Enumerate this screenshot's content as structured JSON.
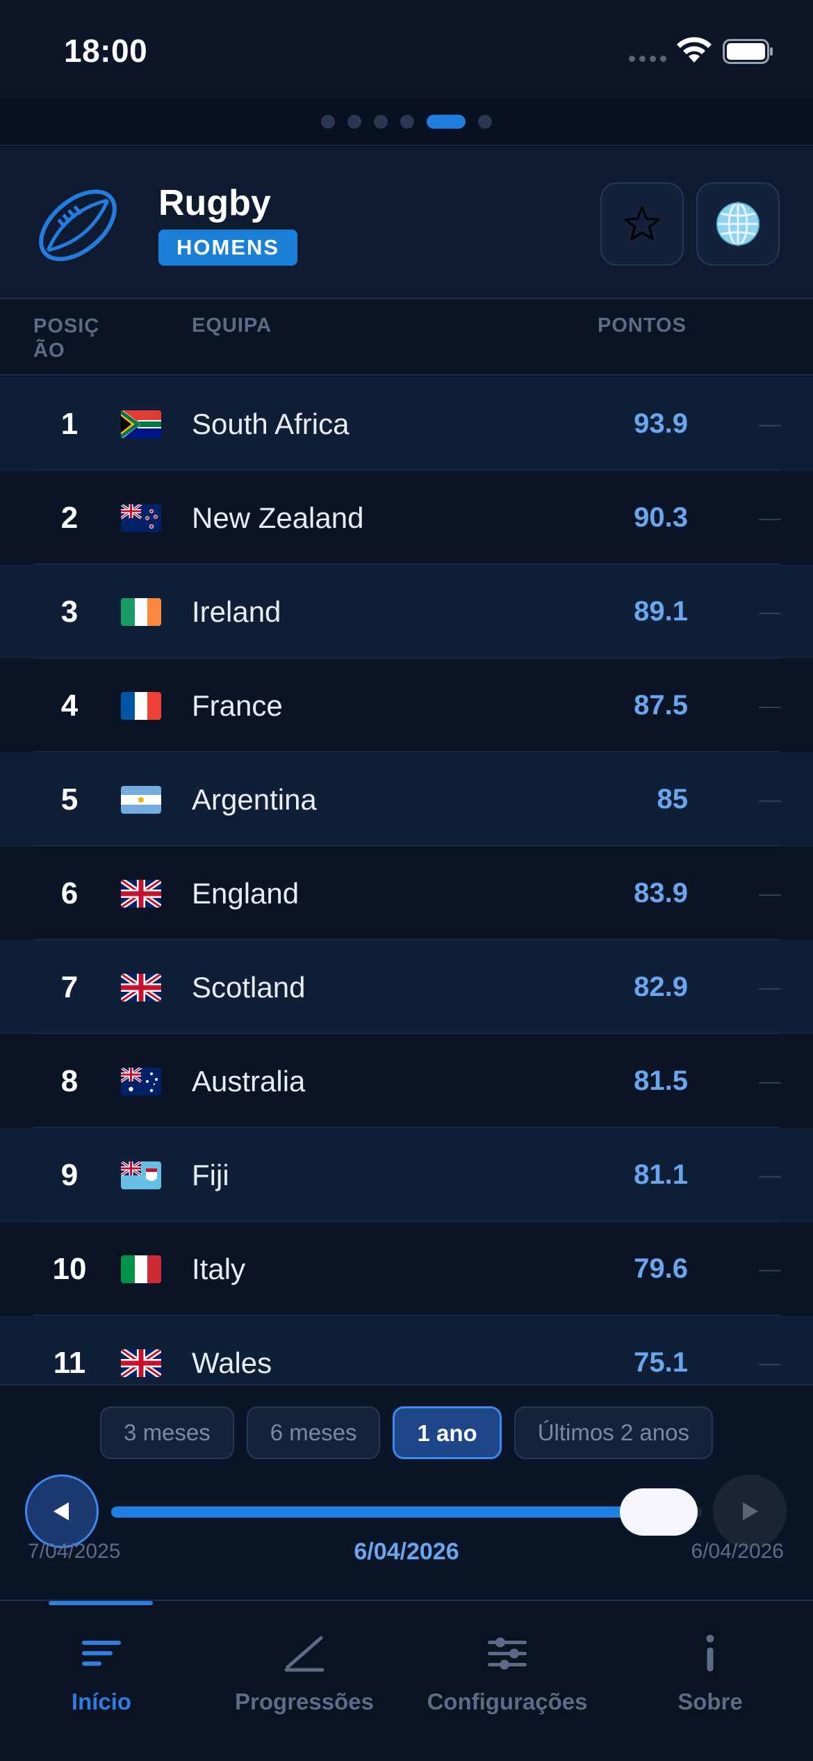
{
  "status": {
    "time": "18:00"
  },
  "pager": {
    "count": 6,
    "active": 4
  },
  "header": {
    "title": "Rugby",
    "badge": "HOMENS"
  },
  "columns": {
    "position": "POSIÇ ÃO",
    "team": "EQUIPA",
    "points": "PONTOS"
  },
  "rankings": [
    {
      "pos": "1",
      "team": "South Africa",
      "points": "93.9",
      "trend": "—",
      "flag": "za"
    },
    {
      "pos": "2",
      "team": "New Zealand",
      "points": "90.3",
      "trend": "—",
      "flag": "nz"
    },
    {
      "pos": "3",
      "team": "Ireland",
      "points": "89.1",
      "trend": "—",
      "flag": "ie"
    },
    {
      "pos": "4",
      "team": "France",
      "points": "87.5",
      "trend": "—",
      "flag": "fr"
    },
    {
      "pos": "5",
      "team": "Argentina",
      "points": "85",
      "trend": "—",
      "flag": "ar"
    },
    {
      "pos": "6",
      "team": "England",
      "points": "83.9",
      "trend": "—",
      "flag": "gb"
    },
    {
      "pos": "7",
      "team": "Scotland",
      "points": "82.9",
      "trend": "—",
      "flag": "gb"
    },
    {
      "pos": "8",
      "team": "Australia",
      "points": "81.5",
      "trend": "—",
      "flag": "au"
    },
    {
      "pos": "9",
      "team": "Fiji",
      "points": "81.1",
      "trend": "—",
      "flag": "fj"
    },
    {
      "pos": "10",
      "team": "Italy",
      "points": "79.6",
      "trend": "—",
      "flag": "it"
    },
    {
      "pos": "11",
      "team": "Wales",
      "points": "75.1",
      "trend": "—",
      "flag": "gb"
    }
  ],
  "periods": [
    {
      "label": "3 meses",
      "active": false
    },
    {
      "label": "6 meses",
      "active": false
    },
    {
      "label": "1 ano",
      "active": true
    },
    {
      "label": "Últimos 2 anos",
      "active": false
    }
  ],
  "timeline": {
    "start": "7/04/2025",
    "current": "6/04/2026",
    "end": "6/04/2026",
    "progress": 1.0
  },
  "tabs": [
    {
      "label": "Início",
      "icon": "home-lines-icon",
      "active": true
    },
    {
      "label": "Progressões",
      "icon": "trend-line-icon",
      "active": false
    },
    {
      "label": "Configurações",
      "icon": "sliders-icon",
      "active": false
    },
    {
      "label": "Sobre",
      "icon": "info-icon",
      "active": false
    }
  ],
  "colors": {
    "accent": "#1f7ee0",
    "points": "#6aa6ee",
    "background": "#0b1426"
  }
}
